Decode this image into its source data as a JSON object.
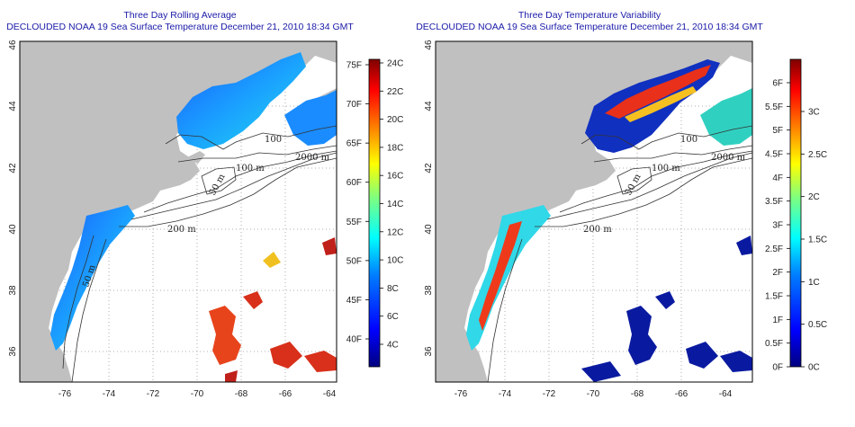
{
  "panels": [
    {
      "id": "left",
      "title_line1": "Three Day Rolling Average",
      "title_line2": "DECLOUDED NOAA 19 Sea Surface Temperature December 21, 2010 18:34 GMT",
      "colorbar": {
        "left_labels": [
          "75F",
          "70F",
          "65F",
          "60F",
          "55F",
          "50F",
          "45F",
          "40F"
        ],
        "right_labels": [
          "24C",
          "22C",
          "20C",
          "18C",
          "16C",
          "14C",
          "12C",
          "10C",
          "8C",
          "6C",
          "4C"
        ]
      }
    },
    {
      "id": "right",
      "title_line1": "Three Day Temperature Variability",
      "title_line2": "DECLOUDED NOAA 19 Sea Surface Temperature December 21, 2010 18:34 GMT",
      "colorbar": {
        "left_labels": [
          "6F",
          "5.5F",
          "5F",
          "4.5F",
          "4F",
          "3.5F",
          "3F",
          "2.5F",
          "2F",
          "1.5F",
          "1F",
          "0.5F",
          "0F"
        ],
        "right_labels": [
          "3C",
          "2.5C",
          "2C",
          "1.5C",
          "1C",
          "0.5C",
          "0C"
        ]
      }
    }
  ],
  "x_ticks": [
    "-76",
    "-74",
    "-72",
    "-70",
    "-68",
    "-66",
    "-64"
  ],
  "y_ticks": [
    "36",
    "38",
    "40",
    "42",
    "44",
    "46"
  ],
  "contour_labels": [
    "100",
    "100 m",
    "2000 m",
    "50 m",
    "200 m",
    "50 m"
  ],
  "colors": {
    "land": "#c0c0c0",
    "title": "#1a1aa8",
    "colorbar_gradient": [
      "#00007f",
      "#0000ff",
      "#007fff",
      "#00ffff",
      "#7fff7f",
      "#ffff00",
      "#ff7f00",
      "#ff0000",
      "#7f0000"
    ]
  }
}
